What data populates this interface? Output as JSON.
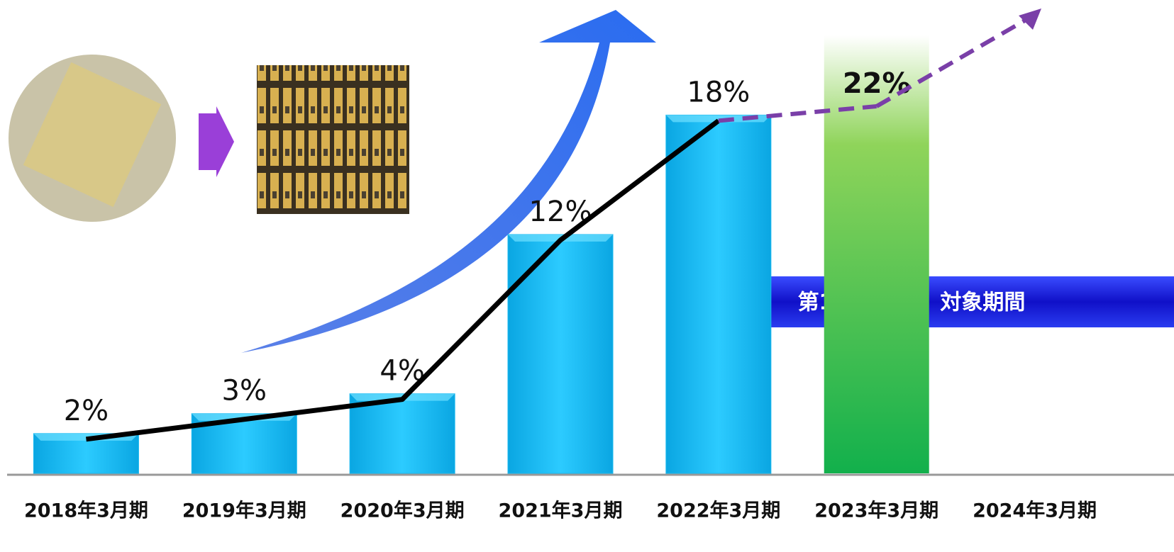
{
  "chart_data": {
    "type": "bar",
    "categories": [
      "2018年3月期",
      "2019年3月期",
      "2020年3月期",
      "2021年3月期",
      "2022年3月期",
      "2023年3月期",
      "2024年3月期"
    ],
    "values": [
      2,
      3,
      4,
      12,
      18,
      22,
      null
    ],
    "value_labels": [
      "2%",
      "3%",
      "4%",
      "12%",
      "18%",
      "22%",
      null
    ],
    "color": "#19b9f0",
    "forecast_color": "#22b84a",
    "line_color": "#000000",
    "forecast_line_color": "#7a3fa8",
    "annotation": "第1中期計画　対象期間"
  }
}
